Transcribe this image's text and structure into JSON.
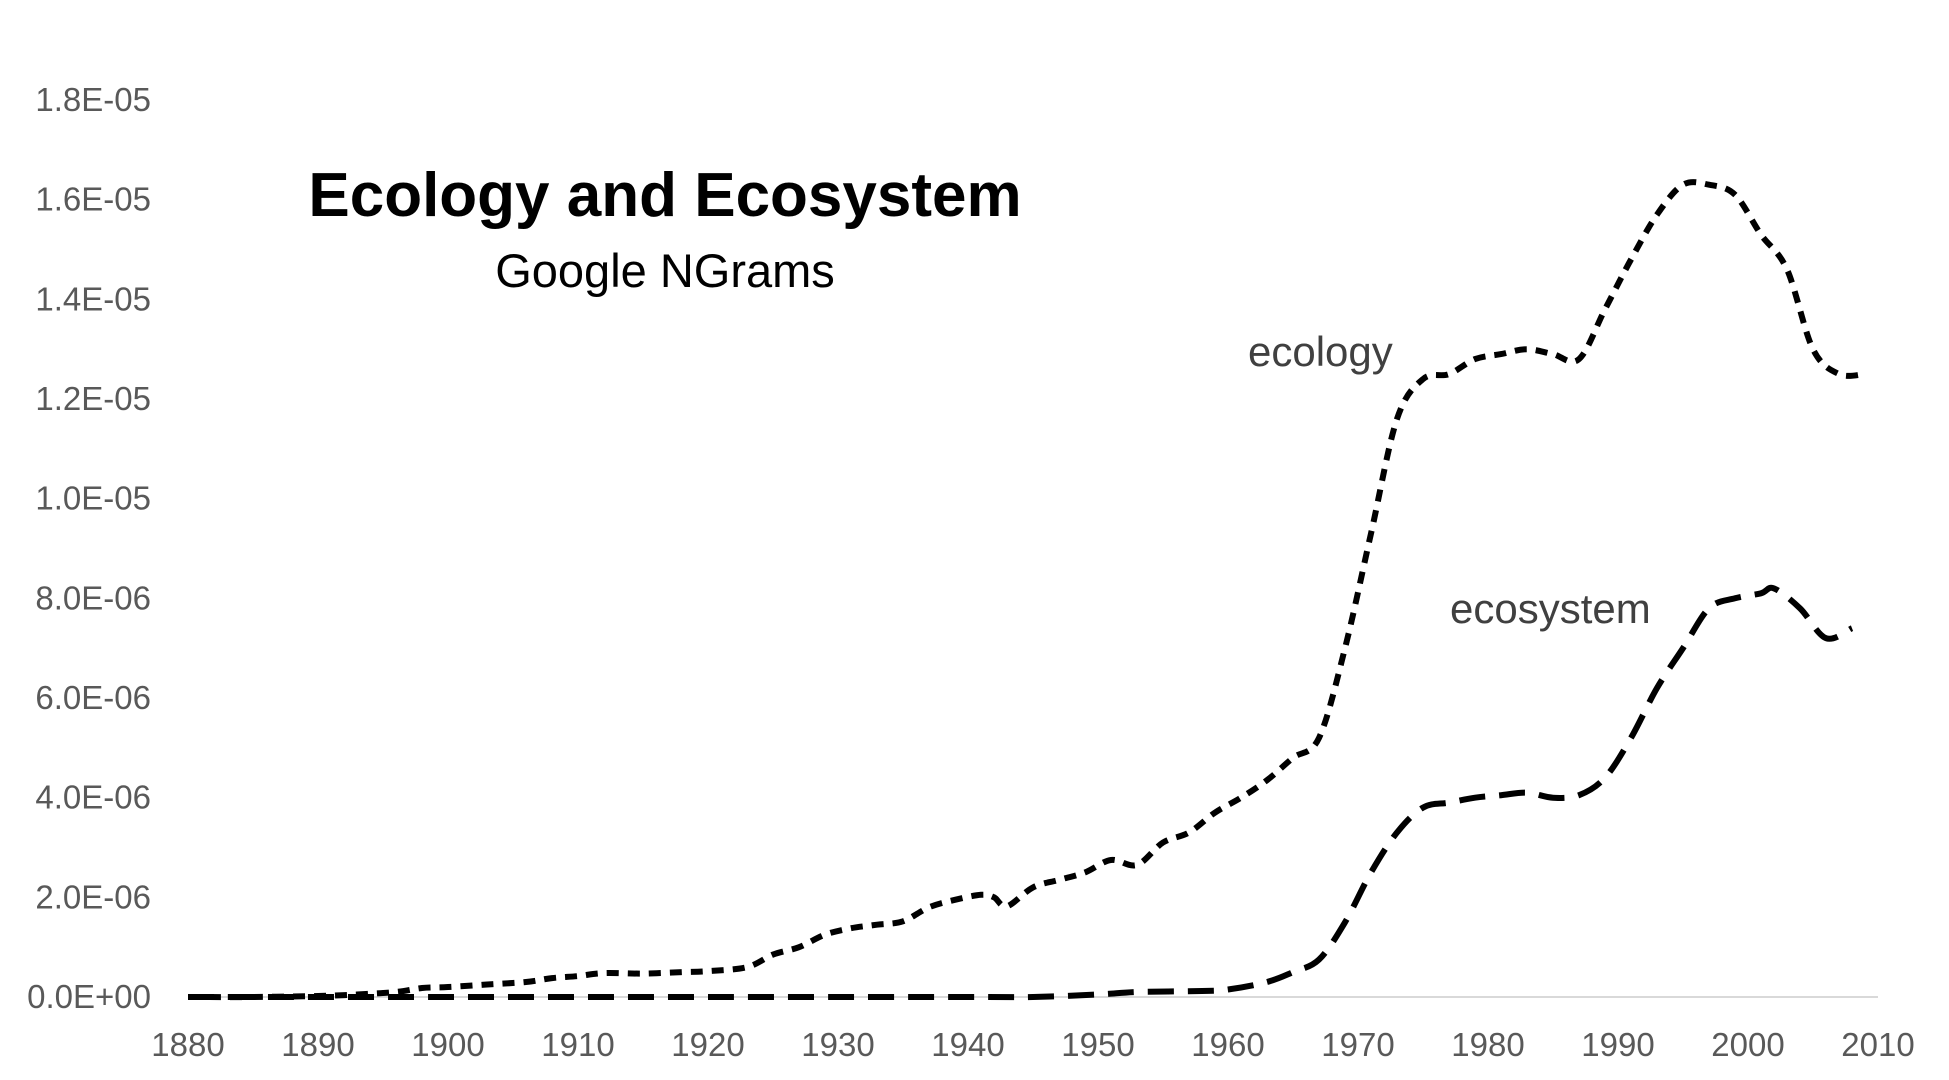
{
  "chart_data": {
    "type": "line",
    "title": "Ecology and Ecosystem",
    "subtitle": "Google NGrams",
    "xlabel": "",
    "ylabel": "",
    "xlim": [
      1880,
      2010
    ],
    "ylim": [
      0,
      1.8e-05
    ],
    "grid": false,
    "x_ticks": [
      "1880",
      "1890",
      "1900",
      "1910",
      "1920",
      "1930",
      "1940",
      "1950",
      "1960",
      "1970",
      "1980",
      "1990",
      "2000",
      "2010"
    ],
    "y_ticks": [
      "0.0E+00",
      "2.0E-06",
      "4.0E-06",
      "6.0E-06",
      "8.0E-06",
      "1.0E-05",
      "1.2E-05",
      "1.4E-05",
      "1.6E-05",
      "1.8E-05"
    ],
    "series_line_color": "#000000",
    "series": [
      {
        "name": "ecology",
        "x": [
          1880,
          1885,
          1890,
          1893,
          1896,
          1898,
          1900,
          1903,
          1906,
          1908,
          1910,
          1912,
          1915,
          1918,
          1920,
          1923,
          1925,
          1927,
          1929,
          1931,
          1933,
          1935,
          1937,
          1939,
          1941,
          1942,
          1943,
          1945,
          1947,
          1949,
          1951,
          1953,
          1955,
          1957,
          1959,
          1961,
          1963,
          1965,
          1967,
          1969,
          1971,
          1973,
          1975,
          1977,
          1979,
          1981,
          1983,
          1985,
          1987,
          1989,
          1991,
          1993,
          1995,
          1997,
          1999,
          2001,
          2003,
          2005,
          2007,
          2009
        ],
        "y": [
          0,
          0,
          2e-08,
          5e-08,
          1e-07,
          1.8e-07,
          2e-07,
          2.5e-07,
          3e-07,
          3.8e-07,
          4.2e-07,
          4.8e-07,
          4.7e-07,
          5e-07,
          5.2e-07,
          6e-07,
          8.5e-07,
          1e-06,
          1.25e-06,
          1.38e-06,
          1.45e-06,
          1.52e-06,
          1.8e-06,
          1.95e-06,
          2.05e-06,
          2e-06,
          1.82e-06,
          2.2e-06,
          2.35e-06,
          2.5e-06,
          2.75e-06,
          2.65e-06,
          3.1e-06,
          3.3e-06,
          3.7e-06,
          4e-06,
          4.35e-06,
          4.8e-06,
          5.2e-06,
          7e-06,
          9.3e-06,
          1.16e-05,
          1.24e-05,
          1.25e-05,
          1.28e-05,
          1.29e-05,
          1.3e-05,
          1.29e-05,
          1.28e-05,
          1.38e-05,
          1.48e-05,
          1.57e-05,
          1.63e-05,
          1.63e-05,
          1.61e-05,
          1.53e-05,
          1.46e-05,
          1.3e-05,
          1.25e-05,
          1.25e-05
        ],
        "label": "ecology"
      },
      {
        "name": "ecosystem",
        "x": [
          1880,
          1900,
          1920,
          1940,
          1945,
          1950,
          1953,
          1958,
          1960,
          1963,
          1965,
          1967,
          1969,
          1971,
          1973,
          1975,
          1977,
          1979,
          1981,
          1983,
          1985,
          1987,
          1989,
          1991,
          1993,
          1995,
          1997,
          1999,
          2001,
          2002,
          2004,
          2006,
          2008
        ],
        "y": [
          0,
          0,
          0,
          0,
          0,
          5e-08,
          1e-07,
          1.2e-07,
          1.5e-07,
          3e-07,
          5e-07,
          7.5e-07,
          1.5e-06,
          2.5e-06,
          3.3e-06,
          3.8e-06,
          3.9e-06,
          4e-06,
          4.05e-06,
          4.1e-06,
          4e-06,
          4.05e-06,
          4.4e-06,
          5.2e-06,
          6.2e-06,
          7e-06,
          7.8e-06,
          8e-06,
          8.1e-06,
          8.2e-06,
          7.8e-06,
          7.2e-06,
          7.4e-06
        ],
        "label": "ecosystem"
      }
    ]
  }
}
